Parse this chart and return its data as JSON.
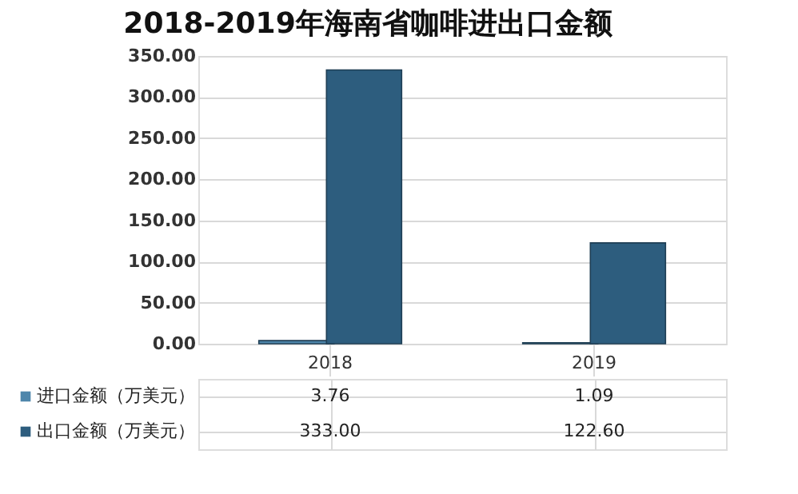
{
  "chart_data": {
    "type": "bar",
    "title": "2018-2019年海南省咖啡进出口金额",
    "categories": [
      "2018",
      "2019"
    ],
    "series": [
      {
        "name": "进口金额（万美元）",
        "color": "#4e86ab",
        "values": [
          3.76,
          1.09
        ],
        "value_labels": [
          "3.76",
          "1.09"
        ]
      },
      {
        "name": "出口金额（万美元）",
        "color": "#2d5d7e",
        "values": [
          333.0,
          122.6
        ],
        "value_labels": [
          "333.00",
          "122.60"
        ]
      }
    ],
    "ylim": [
      0,
      350
    ],
    "yticks": [
      {
        "value": 0,
        "label": "0.00"
      },
      {
        "value": 50,
        "label": "50.00"
      },
      {
        "value": 100,
        "label": "100.00"
      },
      {
        "value": 150,
        "label": "150.00"
      },
      {
        "value": 200,
        "label": "200.00"
      },
      {
        "value": 250,
        "label": "250.00"
      },
      {
        "value": 300,
        "label": "300.00"
      },
      {
        "value": 350,
        "label": "350.00"
      }
    ],
    "grid": "y",
    "legend": "bottom"
  }
}
